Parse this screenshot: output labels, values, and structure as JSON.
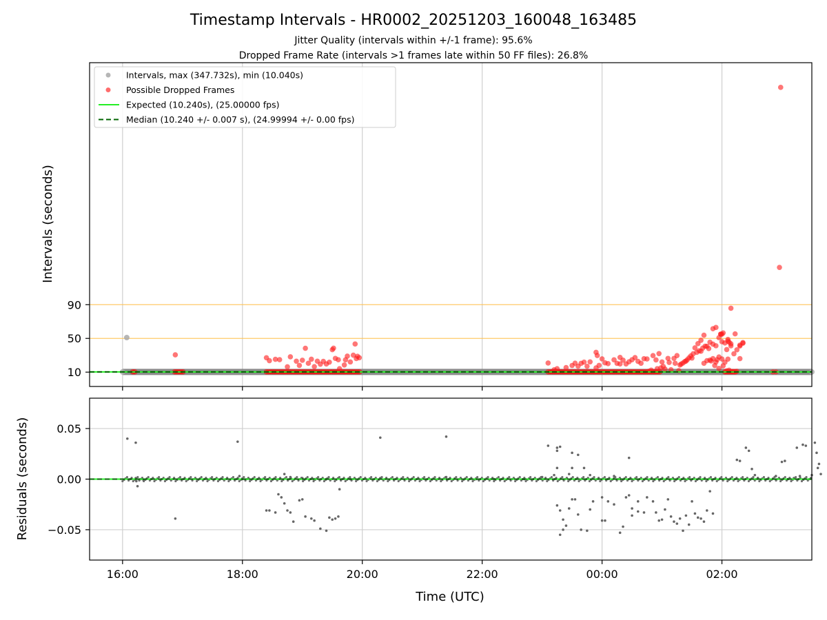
{
  "chart_data": {
    "type": "scatter",
    "title": "Timestamp Intervals - HR0002_20251203_160048_163485",
    "subtitle_lines": [
      "Jitter Quality (intervals within +/-1 frame): 95.6%",
      "Dropped Frame Rate (intervals >1 frames late within 50 FF files): 26.8%"
    ],
    "xlabel": "Time (UTC)",
    "x_unit": "hours since 16:00 UTC",
    "x_ticks": [
      {
        "value": 0,
        "label": "16:00"
      },
      {
        "value": 2,
        "label": "18:00"
      },
      {
        "value": 4,
        "label": "20:00"
      },
      {
        "value": 6,
        "label": "22:00"
      },
      {
        "value": 8,
        "label": "00:00"
      },
      {
        "value": 10,
        "label": "02:00"
      }
    ],
    "xlim": [
      -0.55,
      11.5
    ],
    "grid": true,
    "legend_position": "upper-left",
    "top_panel": {
      "ylabel": "Intervals (seconds)",
      "ylim": [
        -7,
        377
      ],
      "y_ticks": [
        10,
        50,
        90
      ],
      "reference_lines": [
        50,
        90
      ],
      "legend": [
        {
          "label": "Intervals, max (347.732s), min (10.040s)",
          "kind": "marker",
          "color": "#a9a9a9"
        },
        {
          "label": "Possible Dropped Frames",
          "kind": "marker",
          "color": "#ff5252"
        },
        {
          "label": "Expected (10.240s), (25.00000 fps)",
          "kind": "line",
          "color": "#22ee22"
        },
        {
          "label": "Median (10.240 +/- 0.007 s), (24.99994 +/- 0.00 fps)",
          "kind": "dashed",
          "color": "#006400"
        }
      ],
      "expected": 10.24,
      "median": 10.24,
      "interval_points": [
        [
          0.07,
          51.0
        ],
        [
          0.0,
          10.24
        ],
        [
          11.5,
          10.24
        ]
      ],
      "dropped_points": [
        [
          0.88,
          30.5
        ],
        [
          2.4,
          27.1
        ],
        [
          2.45,
          23.6
        ],
        [
          2.55,
          25.2
        ],
        [
          2.62,
          24.8
        ],
        [
          2.75,
          16.3
        ],
        [
          2.8,
          28.2
        ],
        [
          2.9,
          23.0
        ],
        [
          2.95,
          18.0
        ],
        [
          3.0,
          24.1
        ],
        [
          3.05,
          38.3
        ],
        [
          3.1,
          20.5
        ],
        [
          3.15,
          25.3
        ],
        [
          3.2,
          16.5
        ],
        [
          3.25,
          23.0
        ],
        [
          3.3,
          19.4
        ],
        [
          3.35,
          22.8
        ],
        [
          3.4,
          19.7
        ],
        [
          3.45,
          21.8
        ],
        [
          3.5,
          36.7
        ],
        [
          3.52,
          38.4
        ],
        [
          3.55,
          26.3
        ],
        [
          3.6,
          24.7
        ],
        [
          3.62,
          14.1
        ],
        [
          3.7,
          18.5
        ],
        [
          3.72,
          24.6
        ],
        [
          3.75,
          29.0
        ],
        [
          3.8,
          22.1
        ],
        [
          3.85,
          30.1
        ],
        [
          3.88,
          43.4
        ],
        [
          3.9,
          26.1
        ],
        [
          3.92,
          28.8
        ],
        [
          3.95,
          27.1
        ],
        [
          7.1,
          20.8
        ],
        [
          7.2,
          12.8
        ],
        [
          7.25,
          14.1
        ],
        [
          7.4,
          15.4
        ],
        [
          7.5,
          17.9
        ],
        [
          7.55,
          20.6
        ],
        [
          7.6,
          17.0
        ],
        [
          7.65,
          20.4
        ],
        [
          7.7,
          21.9
        ],
        [
          7.75,
          16.9
        ],
        [
          7.8,
          22.2
        ],
        [
          7.9,
          15.0
        ],
        [
          7.95,
          18.0
        ],
        [
          8.05,
          21.0
        ],
        [
          8.1,
          20.1
        ],
        [
          8.25,
          20.4
        ],
        [
          8.3,
          19.7
        ],
        [
          8.35,
          24.2
        ],
        [
          8.45,
          22.3
        ],
        [
          8.6,
          22.8
        ],
        [
          7.9,
          33.5
        ],
        [
          7.92,
          29.7
        ],
        [
          8.0,
          25.7
        ],
        [
          8.2,
          24.6
        ],
        [
          8.3,
          27.5
        ],
        [
          8.4,
          19.7
        ],
        [
          8.5,
          24.7
        ],
        [
          8.55,
          27.3
        ],
        [
          8.65,
          20.5
        ],
        [
          8.7,
          25.9
        ],
        [
          8.75,
          25.6
        ],
        [
          8.85,
          29.6
        ],
        [
          8.9,
          24.5
        ],
        [
          8.95,
          32.0
        ],
        [
          9.0,
          22.1
        ],
        [
          9.05,
          13.7
        ],
        [
          9.1,
          26.3
        ],
        [
          9.15,
          12.9
        ],
        [
          9.2,
          26.3
        ],
        [
          9.25,
          29.6
        ],
        [
          9.3,
          18.5
        ],
        [
          9.35,
          20.8
        ],
        [
          9.4,
          23.1
        ],
        [
          9.45,
          26.9
        ],
        [
          9.5,
          26.7
        ],
        [
          9.55,
          38.8
        ],
        [
          9.6,
          43.8
        ],
        [
          9.65,
          34.8
        ],
        [
          9.7,
          20.5
        ],
        [
          9.75,
          23.6
        ],
        [
          9.8,
          24.3
        ],
        [
          9.82,
          23.3
        ],
        [
          9.85,
          26.0
        ],
        [
          9.9,
          22.0
        ],
        [
          9.92,
          24.7
        ],
        [
          9.95,
          28.0
        ],
        [
          10.0,
          25.6
        ],
        [
          10.05,
          21.7
        ],
        [
          8.78,
          11.0
        ],
        [
          8.82,
          12.4
        ],
        [
          8.92,
          14.1
        ],
        [
          8.98,
          15.0
        ],
        [
          9.02,
          16.8
        ],
        [
          9.12,
          21.5
        ],
        [
          9.22,
          20.5
        ],
        [
          9.28,
          11.8
        ],
        [
          9.32,
          19.6
        ],
        [
          9.38,
          22.6
        ],
        [
          9.42,
          24.6
        ],
        [
          9.48,
          29.2
        ],
        [
          9.52,
          31.8
        ],
        [
          9.58,
          33.5
        ],
        [
          9.62,
          35.3
        ],
        [
          9.68,
          38.5
        ],
        [
          9.72,
          40.8
        ],
        [
          9.78,
          38.0
        ],
        [
          9.88,
          17.9
        ],
        [
          9.95,
          14.4
        ],
        [
          10.02,
          17.5
        ],
        [
          10.08,
          11.5
        ],
        [
          10.1,
          25.4
        ],
        [
          10.12,
          12.3
        ],
        [
          10.18,
          10.8
        ],
        [
          10.22,
          10.7
        ],
        [
          10.25,
          10.9
        ],
        [
          10.3,
          26.0
        ],
        [
          9.65,
          47.8
        ],
        [
          9.7,
          53.8
        ],
        [
          9.75,
          40.7
        ],
        [
          9.8,
          45.5
        ],
        [
          9.85,
          43.2
        ],
        [
          9.9,
          41.3
        ],
        [
          9.95,
          50.9
        ],
        [
          9.98,
          55.0
        ],
        [
          10.0,
          46.1
        ],
        [
          10.05,
          44.6
        ],
        [
          10.08,
          36.8
        ],
        [
          10.1,
          46.8
        ],
        [
          10.15,
          43.6
        ],
        [
          10.2,
          31.8
        ],
        [
          10.25,
          36.5
        ],
        [
          10.3,
          42.1
        ],
        [
          10.35,
          44.3
        ],
        [
          9.85,
          61.5
        ],
        [
          9.98,
          55.1
        ],
        [
          10.0,
          55.0
        ],
        [
          10.1,
          48.8
        ],
        [
          10.15,
          41.2
        ],
        [
          9.9,
          63.0
        ],
        [
          10.02,
          56.5
        ],
        [
          10.12,
          45.5
        ],
        [
          10.22,
          55.4
        ],
        [
          10.15,
          85.8
        ],
        [
          10.3,
          41.0
        ],
        [
          10.35,
          45.0
        ],
        [
          10.85,
          10.2
        ],
        [
          10.9,
          10.2
        ],
        [
          10.98,
          347.7
        ],
        [
          10.96,
          134.2
        ]
      ],
      "dropped_clusters": [
        {
          "x_start": 0.17,
          "x_end": 0.23,
          "y": 10.3
        },
        {
          "x_start": 0.87,
          "x_end": 1.03,
          "y": 10.3
        },
        {
          "x_start": 2.4,
          "x_end": 3.98,
          "y": 10.3
        },
        {
          "x_start": 7.1,
          "x_end": 8.98,
          "y": 10.3
        },
        {
          "x_start": 10.05,
          "x_end": 10.25,
          "y": 10.3
        }
      ]
    },
    "bottom_panel": {
      "ylabel": "Residuals (seconds)",
      "ylim": [
        -0.08,
        0.08
      ],
      "y_ticks": [
        {
          "value": 0.05,
          "label": "0.05"
        },
        {
          "value": 0.0,
          "label": "0.00"
        },
        {
          "value": -0.05,
          "label": "−0.05"
        }
      ],
      "points": [
        [
          0.08,
          0.04
        ],
        [
          0.22,
          0.036
        ],
        [
          0.22,
          0.001
        ],
        [
          0.23,
          -0.002
        ],
        [
          0.25,
          -0.007
        ],
        [
          0.3,
          0.0
        ],
        [
          0.35,
          -0.001
        ],
        [
          0.88,
          -0.039
        ],
        [
          0.95,
          0.0
        ],
        [
          1.92,
          0.037
        ],
        [
          1.95,
          0.003
        ],
        [
          2.0,
          0.0
        ],
        [
          2.4,
          -0.031
        ],
        [
          2.45,
          -0.031
        ],
        [
          2.55,
          -0.033
        ],
        [
          2.6,
          -0.015
        ],
        [
          2.65,
          -0.018
        ],
        [
          2.7,
          -0.024
        ],
        [
          2.75,
          -0.031
        ],
        [
          2.8,
          -0.033
        ],
        [
          2.85,
          -0.042
        ],
        [
          2.95,
          -0.021
        ],
        [
          3.0,
          -0.02
        ],
        [
          3.05,
          -0.037
        ],
        [
          3.15,
          -0.039
        ],
        [
          3.2,
          -0.041
        ],
        [
          3.3,
          -0.049
        ],
        [
          3.4,
          -0.051
        ],
        [
          3.45,
          -0.038
        ],
        [
          3.5,
          -0.04
        ],
        [
          3.55,
          -0.039
        ],
        [
          3.6,
          -0.037
        ],
        [
          3.62,
          -0.01
        ],
        [
          2.7,
          0.005
        ],
        [
          2.8,
          0.002
        ],
        [
          3.0,
          0.001
        ],
        [
          3.2,
          0.0
        ],
        [
          3.4,
          0.0
        ],
        [
          3.6,
          0.001
        ],
        [
          3.8,
          0.0
        ],
        [
          4.3,
          0.041
        ],
        [
          4.3,
          0.001
        ],
        [
          5.4,
          0.042
        ],
        [
          5.4,
          0.002
        ],
        [
          5.9,
          0.0
        ],
        [
          6.2,
          0.0
        ],
        [
          6.7,
          0.0
        ],
        [
          7.0,
          0.002
        ],
        [
          7.1,
          0.033
        ],
        [
          7.25,
          0.031
        ],
        [
          7.25,
          0.028
        ],
        [
          7.3,
          0.032
        ],
        [
          7.2,
          0.004
        ],
        [
          7.25,
          0.011
        ],
        [
          7.5,
          0.026
        ],
        [
          7.5,
          0.011
        ],
        [
          7.45,
          0.005
        ],
        [
          7.6,
          0.024
        ],
        [
          7.7,
          0.011
        ],
        [
          7.8,
          0.004
        ],
        [
          7.25,
          -0.026
        ],
        [
          7.3,
          -0.031
        ],
        [
          7.35,
          -0.04
        ],
        [
          7.3,
          -0.055
        ],
        [
          7.35,
          -0.05
        ],
        [
          7.4,
          -0.046
        ],
        [
          7.45,
          -0.029
        ],
        [
          7.5,
          -0.02
        ],
        [
          7.55,
          -0.02
        ],
        [
          7.6,
          -0.035
        ],
        [
          7.65,
          -0.05
        ],
        [
          7.75,
          -0.051
        ],
        [
          7.8,
          -0.03
        ],
        [
          7.85,
          -0.022
        ],
        [
          8.0,
          -0.041
        ],
        [
          8.05,
          -0.041
        ],
        [
          8.0,
          -0.018
        ],
        [
          8.1,
          -0.022
        ],
        [
          8.2,
          -0.025
        ],
        [
          8.3,
          -0.053
        ],
        [
          8.35,
          -0.047
        ],
        [
          8.4,
          -0.018
        ],
        [
          8.45,
          -0.016
        ],
        [
          8.5,
          -0.029
        ],
        [
          8.5,
          -0.036
        ],
        [
          8.6,
          -0.032
        ],
        [
          8.6,
          -0.022
        ],
        [
          8.7,
          -0.033
        ],
        [
          8.75,
          -0.018
        ],
        [
          8.85,
          -0.022
        ],
        [
          8.9,
          -0.033
        ],
        [
          8.95,
          -0.041
        ],
        [
          9.0,
          -0.04
        ],
        [
          9.05,
          -0.03
        ],
        [
          9.1,
          -0.02
        ],
        [
          9.15,
          -0.037
        ],
        [
          9.2,
          -0.042
        ],
        [
          9.25,
          -0.044
        ],
        [
          9.3,
          -0.039
        ],
        [
          9.35,
          -0.051
        ],
        [
          9.4,
          -0.036
        ],
        [
          9.45,
          -0.045
        ],
        [
          9.5,
          -0.022
        ],
        [
          9.55,
          -0.034
        ],
        [
          9.6,
          -0.038
        ],
        [
          9.65,
          -0.039
        ],
        [
          9.7,
          -0.042
        ],
        [
          9.75,
          -0.031
        ],
        [
          9.8,
          -0.012
        ],
        [
          9.85,
          -0.034
        ],
        [
          8.45,
          0.021
        ],
        [
          8.2,
          0.003
        ],
        [
          8.3,
          0.0
        ],
        [
          10.25,
          0.019
        ],
        [
          10.3,
          0.018
        ],
        [
          10.4,
          0.031
        ],
        [
          10.45,
          0.028
        ],
        [
          10.5,
          0.01
        ],
        [
          10.55,
          0.004
        ],
        [
          10.6,
          0.001
        ],
        [
          11.0,
          0.017
        ],
        [
          11.05,
          0.018
        ],
        [
          11.25,
          0.031
        ],
        [
          11.35,
          0.034
        ],
        [
          11.4,
          0.033
        ],
        [
          11.55,
          0.036
        ],
        [
          11.58,
          0.026
        ],
        [
          11.62,
          0.015
        ],
        [
          11.6,
          0.011
        ],
        [
          11.3,
          0.003
        ],
        [
          11.5,
          0.004
        ],
        [
          11.65,
          0.005
        ],
        [
          10.9,
          0.003
        ],
        [
          11.1,
          0.0
        ],
        [
          11.2,
          0.001
        ]
      ],
      "dense_bands": [
        {
          "x_start": 0.0,
          "x_end": 11.5,
          "y": 0.0,
          "spread": 0.002
        }
      ]
    }
  }
}
